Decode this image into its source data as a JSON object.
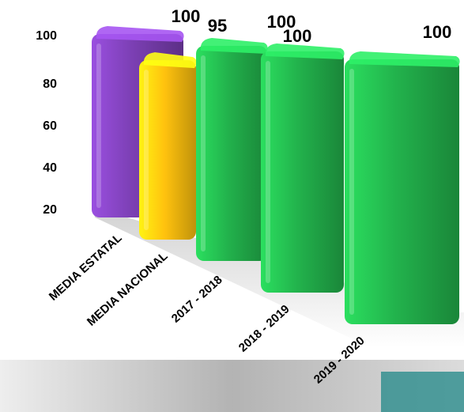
{
  "chart_data": {
    "type": "bar",
    "categories": [
      "MEDIA ESTATAL",
      "MEDIA NACIONAL",
      "2017 - 2018",
      "2018 - 2019",
      "2019 - 2020"
    ],
    "values": [
      100,
      95,
      100,
      100,
      100
    ],
    "data_labels": [
      "100",
      "95",
      "100",
      "100",
      "100"
    ],
    "colors": [
      "#7b3fb3",
      "#ffc20e",
      "#22b24c",
      "#22b24c",
      "#22b24c"
    ],
    "yticks": [
      "20",
      "40",
      "60",
      "80",
      "100"
    ],
    "ylim": [
      20,
      100
    ],
    "grid": false,
    "legend": "none"
  }
}
